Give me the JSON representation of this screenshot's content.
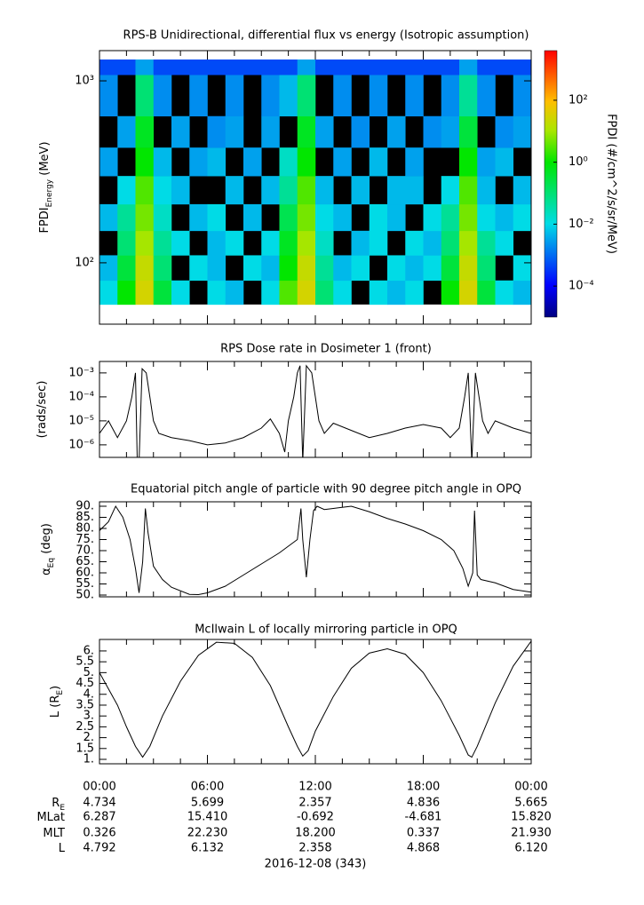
{
  "time_axis": {
    "xlim": [
      0,
      24
    ],
    "xticks": [
      {
        "value": 0,
        "label": "00:00"
      },
      {
        "value": 6,
        "label": "06:00"
      },
      {
        "value": 12,
        "label": "12:00"
      },
      {
        "value": 18,
        "label": "18:00"
      },
      {
        "value": 24,
        "label": "00:00"
      }
    ],
    "xminor": [
      1.5,
      3,
      4.5,
      7.5,
      9,
      10.5,
      13.5,
      15,
      16.5,
      19.5,
      21,
      22.5
    ]
  },
  "chart_data": [
    {
      "type": "heatmap",
      "title": "RPS-B  Unidirectional, differential flux vs energy (Isotropic assumption)",
      "y_label": {
        "main": "FPDI",
        "sub": "Energy",
        "rest": " (MeV)"
      },
      "yscale": "log",
      "ylim": [
        46,
        1466
      ],
      "yticks": [
        {
          "value": 100,
          "label": "10²"
        },
        {
          "value": 1000,
          "label": "10³"
        }
      ],
      "colormap": "rainbow",
      "x_bins": [
        0,
        1,
        2,
        3,
        4,
        5,
        6,
        7,
        8,
        9,
        10,
        11,
        12,
        13,
        14,
        15,
        16,
        17,
        18,
        19,
        20,
        21,
        22,
        23,
        24
      ],
      "y_bins": [
        59,
        80,
        110,
        150,
        210,
        300,
        430,
        640,
        1080,
        1310
      ],
      "z": [
        [
          0.01,
          1,
          30,
          0.3,
          0.01,
          null,
          0.01,
          0.005,
          null,
          0.01,
          3,
          30,
          0.1,
          0.01,
          null,
          0.01,
          0.005,
          0.01,
          null,
          1,
          30,
          0.3,
          0.01,
          0.005
        ],
        [
          0.005,
          0.3,
          20,
          0.1,
          null,
          0.01,
          0.005,
          null,
          0.01,
          0.005,
          1,
          20,
          0.05,
          0.005,
          0.01,
          null,
          0.01,
          0.005,
          0.01,
          0.3,
          20,
          0.1,
          null,
          0.01
        ],
        [
          null,
          0.1,
          10,
          0.05,
          0.01,
          null,
          0.005,
          0.01,
          null,
          0.01,
          0.5,
          10,
          0.02,
          null,
          0.005,
          0.01,
          null,
          0.01,
          0.005,
          0.1,
          10,
          0.05,
          0.01,
          null
        ],
        [
          0.005,
          0.05,
          5,
          0.02,
          null,
          0.005,
          0.01,
          null,
          0.005,
          null,
          0.2,
          5,
          0.01,
          0.005,
          null,
          0.01,
          0.005,
          null,
          0.01,
          0.05,
          5,
          0.01,
          0.005,
          0.01
        ],
        [
          null,
          0.01,
          3,
          0.01,
          0.005,
          null,
          null,
          0.005,
          null,
          0.005,
          0.05,
          3,
          0.005,
          null,
          0.005,
          null,
          0.005,
          0.005,
          null,
          0.01,
          3,
          0.005,
          null,
          0.005
        ],
        [
          0.003,
          null,
          1,
          0.005,
          null,
          0.003,
          0.005,
          null,
          0.003,
          null,
          0.02,
          1,
          null,
          0.003,
          null,
          0.005,
          null,
          0.003,
          null,
          null,
          1,
          0.003,
          0.005,
          null
        ],
        [
          null,
          0.003,
          0.5,
          null,
          0.003,
          null,
          0.002,
          0.003,
          null,
          0.003,
          null,
          0.5,
          0.003,
          null,
          0.002,
          null,
          0.003,
          null,
          0.002,
          0.003,
          0.3,
          null,
          0.002,
          0.003
        ],
        [
          0.002,
          null,
          0.1,
          0.002,
          null,
          0.002,
          null,
          0.002,
          null,
          0.002,
          0.005,
          0.1,
          null,
          0.002,
          null,
          0.002,
          null,
          0.002,
          null,
          0.002,
          0.05,
          0.002,
          null,
          0.002
        ],
        [
          0.0005,
          0.0005,
          0.003,
          0.0005,
          0.0005,
          0.0005,
          0.0005,
          0.0005,
          0.0005,
          0.0005,
          0.0005,
          0.003,
          0.0005,
          0.0005,
          0.0005,
          0.0005,
          0.0005,
          0.0005,
          0.0005,
          0.0005,
          0.003,
          0.0005,
          0.0005,
          0.0005
        ]
      ],
      "colorbar": {
        "label": "FPDI (#/cm^2/s/sr/MeV)",
        "zscale": "log",
        "zlim": [
          1e-05,
          4000
        ],
        "zticks": [
          {
            "value": 100,
            "label": "10²"
          },
          {
            "value": 1,
            "label": "10⁰"
          },
          {
            "value": 0.01,
            "label": "10⁻²"
          },
          {
            "value": 0.0001,
            "label": "10⁻⁴"
          }
        ]
      }
    },
    {
      "type": "line",
      "title": "RPS  Dose rate in Dosimeter 1 (front)",
      "y_label": {
        "main": "(rads/sec)"
      },
      "yscale": "log",
      "ylim": [
        3e-07,
        0.003
      ],
      "yticks": [
        {
          "value": 0.001,
          "label": "10⁻³"
        },
        {
          "value": 0.0001,
          "label": "10⁻⁴"
        },
        {
          "value": 1e-05,
          "label": "10⁻⁵"
        },
        {
          "value": 1e-06,
          "label": "10⁻⁶"
        }
      ],
      "color": "#000000",
      "x": [
        0,
        0.5,
        1,
        1.5,
        1.8,
        2.0,
        2.1,
        2.2,
        2.37,
        2.6,
        2.8,
        3.0,
        3.3,
        4,
        5,
        6,
        7,
        8,
        9,
        9.5,
        10,
        10.3,
        10.5,
        10.8,
        11.0,
        11.15,
        11.3,
        11.5,
        11.8,
        12.0,
        12.2,
        12.5,
        13,
        14,
        15,
        16,
        17,
        18,
        19,
        19.5,
        20,
        20.3,
        20.5,
        20.7,
        20.9,
        21.1,
        21.3,
        21.6,
        22,
        23,
        24
      ],
      "values": [
        3e-06,
        1e-05,
        2e-06,
        1e-05,
        0.0001,
        0.001,
        2e-07,
        2e-07,
        0.0015,
        0.001,
        0.0001,
        1e-05,
        3e-06,
        2e-06,
        1.5e-06,
        1e-06,
        1.2e-06,
        2e-06,
        5e-06,
        1.2e-05,
        3e-06,
        5e-07,
        1e-05,
        0.0001,
        0.001,
        0.002,
        2e-07,
        0.002,
        0.001,
        0.0001,
        1e-05,
        3e-06,
        8e-06,
        4e-06,
        2e-06,
        3e-06,
        5e-06,
        7e-06,
        5e-06,
        2e-06,
        5e-06,
        0.0001,
        0.001,
        2e-07,
        0.001,
        0.0001,
        1e-05,
        3e-06,
        1e-05,
        5e-06,
        3e-06
      ]
    },
    {
      "type": "line",
      "title": "Equatorial pitch angle of particle with 90 degree pitch angle in OPQ",
      "y_label": {
        "main": "α",
        "sub": "Eq",
        "rest": " (deg)"
      },
      "yscale": "linear",
      "ylim": [
        49.2,
        92
      ],
      "yticks": [
        {
          "value": 90,
          "label": "90."
        },
        {
          "value": 85,
          "label": "85."
        },
        {
          "value": 80,
          "label": "80."
        },
        {
          "value": 75,
          "label": "75."
        },
        {
          "value": 70,
          "label": "70."
        },
        {
          "value": 65,
          "label": "65."
        },
        {
          "value": 60,
          "label": "60."
        },
        {
          "value": 55,
          "label": "55."
        },
        {
          "value": 50,
          "label": "50."
        }
      ],
      "color": "#000000",
      "x": [
        0,
        0.5,
        0.9,
        1.3,
        1.7,
        2.0,
        2.2,
        2.4,
        2.55,
        2.7,
        3.0,
        3.5,
        4,
        5,
        5.5,
        6,
        7,
        8,
        9,
        10,
        11,
        11.2,
        11.3,
        11.5,
        11.7,
        11.9,
        12.1,
        12.5,
        13,
        14,
        15,
        16,
        17,
        18,
        19,
        19.7,
        20.2,
        20.5,
        20.75,
        20.85,
        21,
        21.2,
        22,
        23,
        24
      ],
      "values": [
        79,
        83,
        90,
        85,
        75,
        62,
        51,
        65,
        89,
        78,
        63,
        57,
        53.5,
        50.3,
        50.2,
        51,
        54,
        59,
        64,
        69,
        75,
        89,
        75,
        58,
        75,
        88,
        90,
        88.5,
        89,
        90,
        87.5,
        84.5,
        82,
        79,
        75,
        70,
        62,
        54,
        60,
        88,
        59,
        57,
        55.5,
        52.5,
        51.3
      ]
    },
    {
      "type": "line",
      "title": "McIlwain L of locally mirroring particle in OPQ",
      "y_label": {
        "main": "L (R",
        "sub": "E",
        "rest": ")"
      },
      "yscale": "linear",
      "ylim": [
        0.795,
        6.53
      ],
      "yticks": [
        {
          "value": 6,
          "label": "6."
        },
        5.5,
        {
          "value": 5,
          "label": "5."
        },
        4.5,
        {
          "value": 4,
          "label": "4."
        },
        3.5,
        {
          "value": 3,
          "label": "3."
        },
        2.5,
        {
          "value": 2,
          "label": "2."
        },
        1.5,
        {
          "value": 1,
          "label": "1."
        }
      ],
      "color": "#000000",
      "x": [
        0,
        1,
        1.5,
        2,
        2.4,
        2.8,
        3.5,
        4.5,
        5.5,
        6.5,
        7.5,
        8.5,
        9.5,
        10.5,
        11,
        11.3,
        11.6,
        12,
        13,
        14,
        15,
        16,
        17,
        18,
        19,
        20,
        20.5,
        20.7,
        21,
        22,
        23,
        24
      ],
      "values": [
        5.0,
        3.5,
        2.5,
        1.6,
        1.1,
        1.6,
        3.0,
        4.6,
        5.8,
        6.4,
        6.35,
        5.7,
        4.4,
        2.5,
        1.6,
        1.15,
        1.4,
        2.3,
        3.9,
        5.2,
        5.9,
        6.1,
        5.85,
        5.0,
        3.7,
        2.1,
        1.2,
        1.1,
        1.6,
        3.6,
        5.3,
        6.45
      ]
    }
  ],
  "ephemeris": {
    "labels": [
      {
        "text": "R",
        "sub": "E"
      },
      {
        "text": "MLat"
      },
      {
        "text": "MLT"
      },
      {
        "text": "L"
      }
    ],
    "rows": [
      [
        "4.734",
        "5.699",
        "2.357",
        "4.836",
        "5.665"
      ],
      [
        "6.287",
        "15.410",
        "-0.692",
        "-4.681",
        "15.820"
      ],
      [
        "0.326",
        "22.230",
        "18.200",
        "0.337",
        "21.930"
      ],
      [
        "4.792",
        "6.132",
        "2.358",
        "4.868",
        "6.120"
      ]
    ],
    "date": "2016-12-08 (343)"
  }
}
